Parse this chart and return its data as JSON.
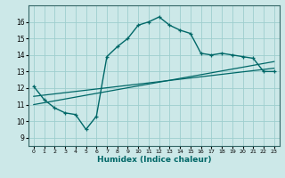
{
  "xlabel": "Humidex (Indice chaleur)",
  "xlim": [
    -0.5,
    23.5
  ],
  "ylim": [
    8.5,
    17.0
  ],
  "yticks": [
    9,
    10,
    11,
    12,
    13,
    14,
    15,
    16
  ],
  "xticks": [
    0,
    1,
    2,
    3,
    4,
    5,
    6,
    7,
    8,
    9,
    10,
    11,
    12,
    13,
    14,
    15,
    16,
    17,
    18,
    19,
    20,
    21,
    22,
    23
  ],
  "background_color": "#cce8e8",
  "grid_color": "#9ecece",
  "line_color": "#006868",
  "main_x": [
    0,
    1,
    2,
    3,
    4,
    5,
    6,
    7,
    8,
    9,
    10,
    11,
    12,
    13,
    14,
    15,
    16,
    17,
    18,
    19,
    20,
    21,
    22,
    23
  ],
  "main_y": [
    12.1,
    11.3,
    10.8,
    10.5,
    10.4,
    9.5,
    10.3,
    13.9,
    14.5,
    15.0,
    15.8,
    16.0,
    16.3,
    15.8,
    15.5,
    15.3,
    14.1,
    14.0,
    14.1,
    14.0,
    13.9,
    13.8,
    13.0,
    13.0
  ],
  "line2_x": [
    0,
    23
  ],
  "line2_y": [
    11.5,
    13.2
  ],
  "line3_x": [
    0,
    23
  ],
  "line3_y": [
    11.0,
    13.6
  ]
}
